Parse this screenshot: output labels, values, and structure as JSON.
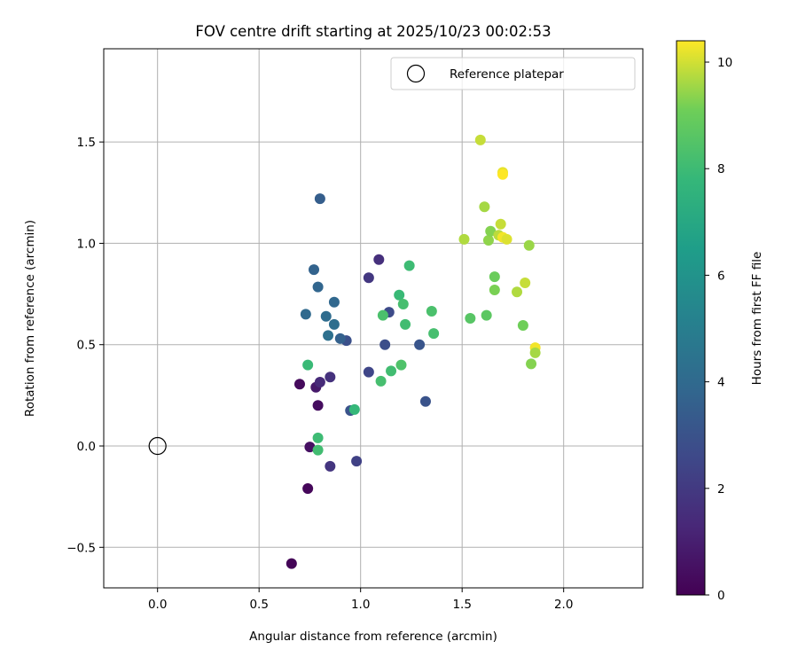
{
  "chart_data": {
    "type": "scatter",
    "title": "FOV centre drift starting at 2025/10/23 00:02:53",
    "xlabel": "Angular distance from reference (arcmin)",
    "ylabel": "Rotation from reference (arcmin)",
    "xlim": [
      -0.265,
      2.39
    ],
    "ylim": [
      -0.7,
      1.96
    ],
    "grid": true,
    "xticks": [
      0.0,
      0.5,
      1.0,
      1.5,
      2.0
    ],
    "xtick_labels": [
      "0.0",
      "0.5",
      "1.0",
      "1.5",
      "2.0"
    ],
    "yticks": [
      -0.5,
      0.0,
      0.5,
      1.0,
      1.5
    ],
    "ytick_labels": [
      "−0.5",
      "0.0",
      "0.5",
      "1.0",
      "1.5"
    ],
    "legend": {
      "location": "top-right",
      "entries": [
        "Reference platepar"
      ]
    },
    "reference_point": {
      "x": 0.0,
      "y": 0.0,
      "label": "Reference platepar"
    },
    "colorbar": {
      "label": "Hours from first FF file",
      "colormap": "viridis",
      "range": [
        0,
        10.4
      ],
      "ticks": [
        0,
        2,
        4,
        6,
        8,
        10
      ],
      "tick_labels": [
        "0",
        "2",
        "4",
        "6",
        "8",
        "10"
      ]
    },
    "points": [
      {
        "x": 0.66,
        "y": -0.58,
        "h": 0.1
      },
      {
        "x": 0.7,
        "y": 0.305,
        "h": 0.3
      },
      {
        "x": 0.74,
        "y": -0.21,
        "h": 0.2
      },
      {
        "x": 0.75,
        "y": -0.005,
        "h": 0.5
      },
      {
        "x": 0.78,
        "y": 0.29,
        "h": 0.8
      },
      {
        "x": 0.79,
        "y": 0.2,
        "h": 0.4
      },
      {
        "x": 0.8,
        "y": 0.315,
        "h": 1.4
      },
      {
        "x": 0.85,
        "y": 0.34,
        "h": 1.7
      },
      {
        "x": 0.85,
        "y": -0.1,
        "h": 1.8
      },
      {
        "x": 1.09,
        "y": 0.92,
        "h": 1.6
      },
      {
        "x": 1.04,
        "y": 0.83,
        "h": 1.9
      },
      {
        "x": 0.98,
        "y": -0.075,
        "h": 2.3
      },
      {
        "x": 1.04,
        "y": 0.365,
        "h": 2.5
      },
      {
        "x": 1.12,
        "y": 0.5,
        "h": 2.8
      },
      {
        "x": 1.14,
        "y": 0.66,
        "h": 2.7
      },
      {
        "x": 0.95,
        "y": 0.175,
        "h": 3.0
      },
      {
        "x": 0.93,
        "y": 0.52,
        "h": 2.9
      },
      {
        "x": 1.32,
        "y": 0.22,
        "h": 3.0
      },
      {
        "x": 1.29,
        "y": 0.5,
        "h": 3.1
      },
      {
        "x": 0.8,
        "y": 1.22,
        "h": 3.5
      },
      {
        "x": 0.77,
        "y": 0.87,
        "h": 3.7
      },
      {
        "x": 0.79,
        "y": 0.785,
        "h": 3.8
      },
      {
        "x": 0.73,
        "y": 0.65,
        "h": 4.0
      },
      {
        "x": 0.83,
        "y": 0.64,
        "h": 4.1
      },
      {
        "x": 0.87,
        "y": 0.71,
        "h": 3.9
      },
      {
        "x": 0.87,
        "y": 0.6,
        "h": 4.2
      },
      {
        "x": 0.84,
        "y": 0.545,
        "h": 4.3
      },
      {
        "x": 0.9,
        "y": 0.53,
        "h": 3.6
      },
      {
        "x": 0.74,
        "y": 0.4,
        "h": 7.9
      },
      {
        "x": 0.79,
        "y": 0.04,
        "h": 8.0
      },
      {
        "x": 0.79,
        "y": -0.02,
        "h": 8.1
      },
      {
        "x": 0.97,
        "y": 0.18,
        "h": 7.8
      },
      {
        "x": 1.1,
        "y": 0.32,
        "h": 8.2
      },
      {
        "x": 1.11,
        "y": 0.645,
        "h": 8.3
      },
      {
        "x": 1.15,
        "y": 0.37,
        "h": 8.1
      },
      {
        "x": 1.19,
        "y": 0.745,
        "h": 7.9
      },
      {
        "x": 1.21,
        "y": 0.7,
        "h": 8.2
      },
      {
        "x": 1.2,
        "y": 0.4,
        "h": 8.4
      },
      {
        "x": 1.22,
        "y": 0.6,
        "h": 8.1
      },
      {
        "x": 1.24,
        "y": 0.89,
        "h": 8.0
      },
      {
        "x": 1.35,
        "y": 0.665,
        "h": 8.3
      },
      {
        "x": 1.36,
        "y": 0.555,
        "h": 8.2
      },
      {
        "x": 1.54,
        "y": 0.63,
        "h": 8.6
      },
      {
        "x": 1.51,
        "y": 1.02,
        "h": 9.7
      },
      {
        "x": 1.59,
        "y": 1.51,
        "h": 9.9
      },
      {
        "x": 1.61,
        "y": 1.18,
        "h": 9.6
      },
      {
        "x": 1.62,
        "y": 0.645,
        "h": 8.7
      },
      {
        "x": 1.63,
        "y": 1.015,
        "h": 9.4
      },
      {
        "x": 1.64,
        "y": 1.06,
        "h": 9.3
      },
      {
        "x": 1.66,
        "y": 0.835,
        "h": 9.0
      },
      {
        "x": 1.66,
        "y": 0.77,
        "h": 9.2
      },
      {
        "x": 1.68,
        "y": 1.04,
        "h": 9.8
      },
      {
        "x": 1.69,
        "y": 1.095,
        "h": 9.9
      },
      {
        "x": 1.7,
        "y": 1.35,
        "h": 10.2
      },
      {
        "x": 1.7,
        "y": 1.34,
        "h": 10.4
      },
      {
        "x": 1.7,
        "y": 1.03,
        "h": 10.3
      },
      {
        "x": 1.72,
        "y": 1.02,
        "h": 10.1
      },
      {
        "x": 1.77,
        "y": 0.76,
        "h": 9.7
      },
      {
        "x": 1.8,
        "y": 0.595,
        "h": 9.1
      },
      {
        "x": 1.81,
        "y": 0.805,
        "h": 9.9
      },
      {
        "x": 1.83,
        "y": 0.99,
        "h": 9.5
      },
      {
        "x": 1.84,
        "y": 0.405,
        "h": 9.3
      },
      {
        "x": 1.86,
        "y": 0.485,
        "h": 10.3
      },
      {
        "x": 1.86,
        "y": 0.46,
        "h": 9.6
      }
    ]
  }
}
